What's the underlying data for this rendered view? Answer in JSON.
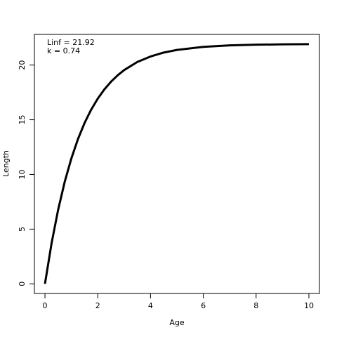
{
  "chart_data": {
    "type": "line",
    "x_label": "Age",
    "y_label": "Length",
    "annotations": [
      "Linf = 21.92",
      "k = 0.74"
    ],
    "x": [
      0,
      0.25,
      0.5,
      0.75,
      1,
      1.25,
      1.5,
      1.75,
      2,
      2.25,
      2.5,
      2.75,
      3,
      3.5,
      4,
      4.5,
      5,
      6,
      7,
      8,
      9,
      10
    ],
    "series": [
      {
        "color": "#000000",
        "values": [
          0,
          3.7,
          6.78,
          9.34,
          11.46,
          13.23,
          14.7,
          15.92,
          16.93,
          17.77,
          18.47,
          19.05,
          19.54,
          20.28,
          20.78,
          21.14,
          21.38,
          21.66,
          21.8,
          21.86,
          21.89,
          21.91
        ]
      }
    ],
    "xlim": [
      -0.4,
      10.4
    ],
    "xticks": [
      0,
      2,
      4,
      6,
      8,
      10
    ],
    "ylim": [
      -0.88,
      22.8
    ],
    "yticks": [
      0,
      5,
      10,
      15,
      20
    ]
  }
}
